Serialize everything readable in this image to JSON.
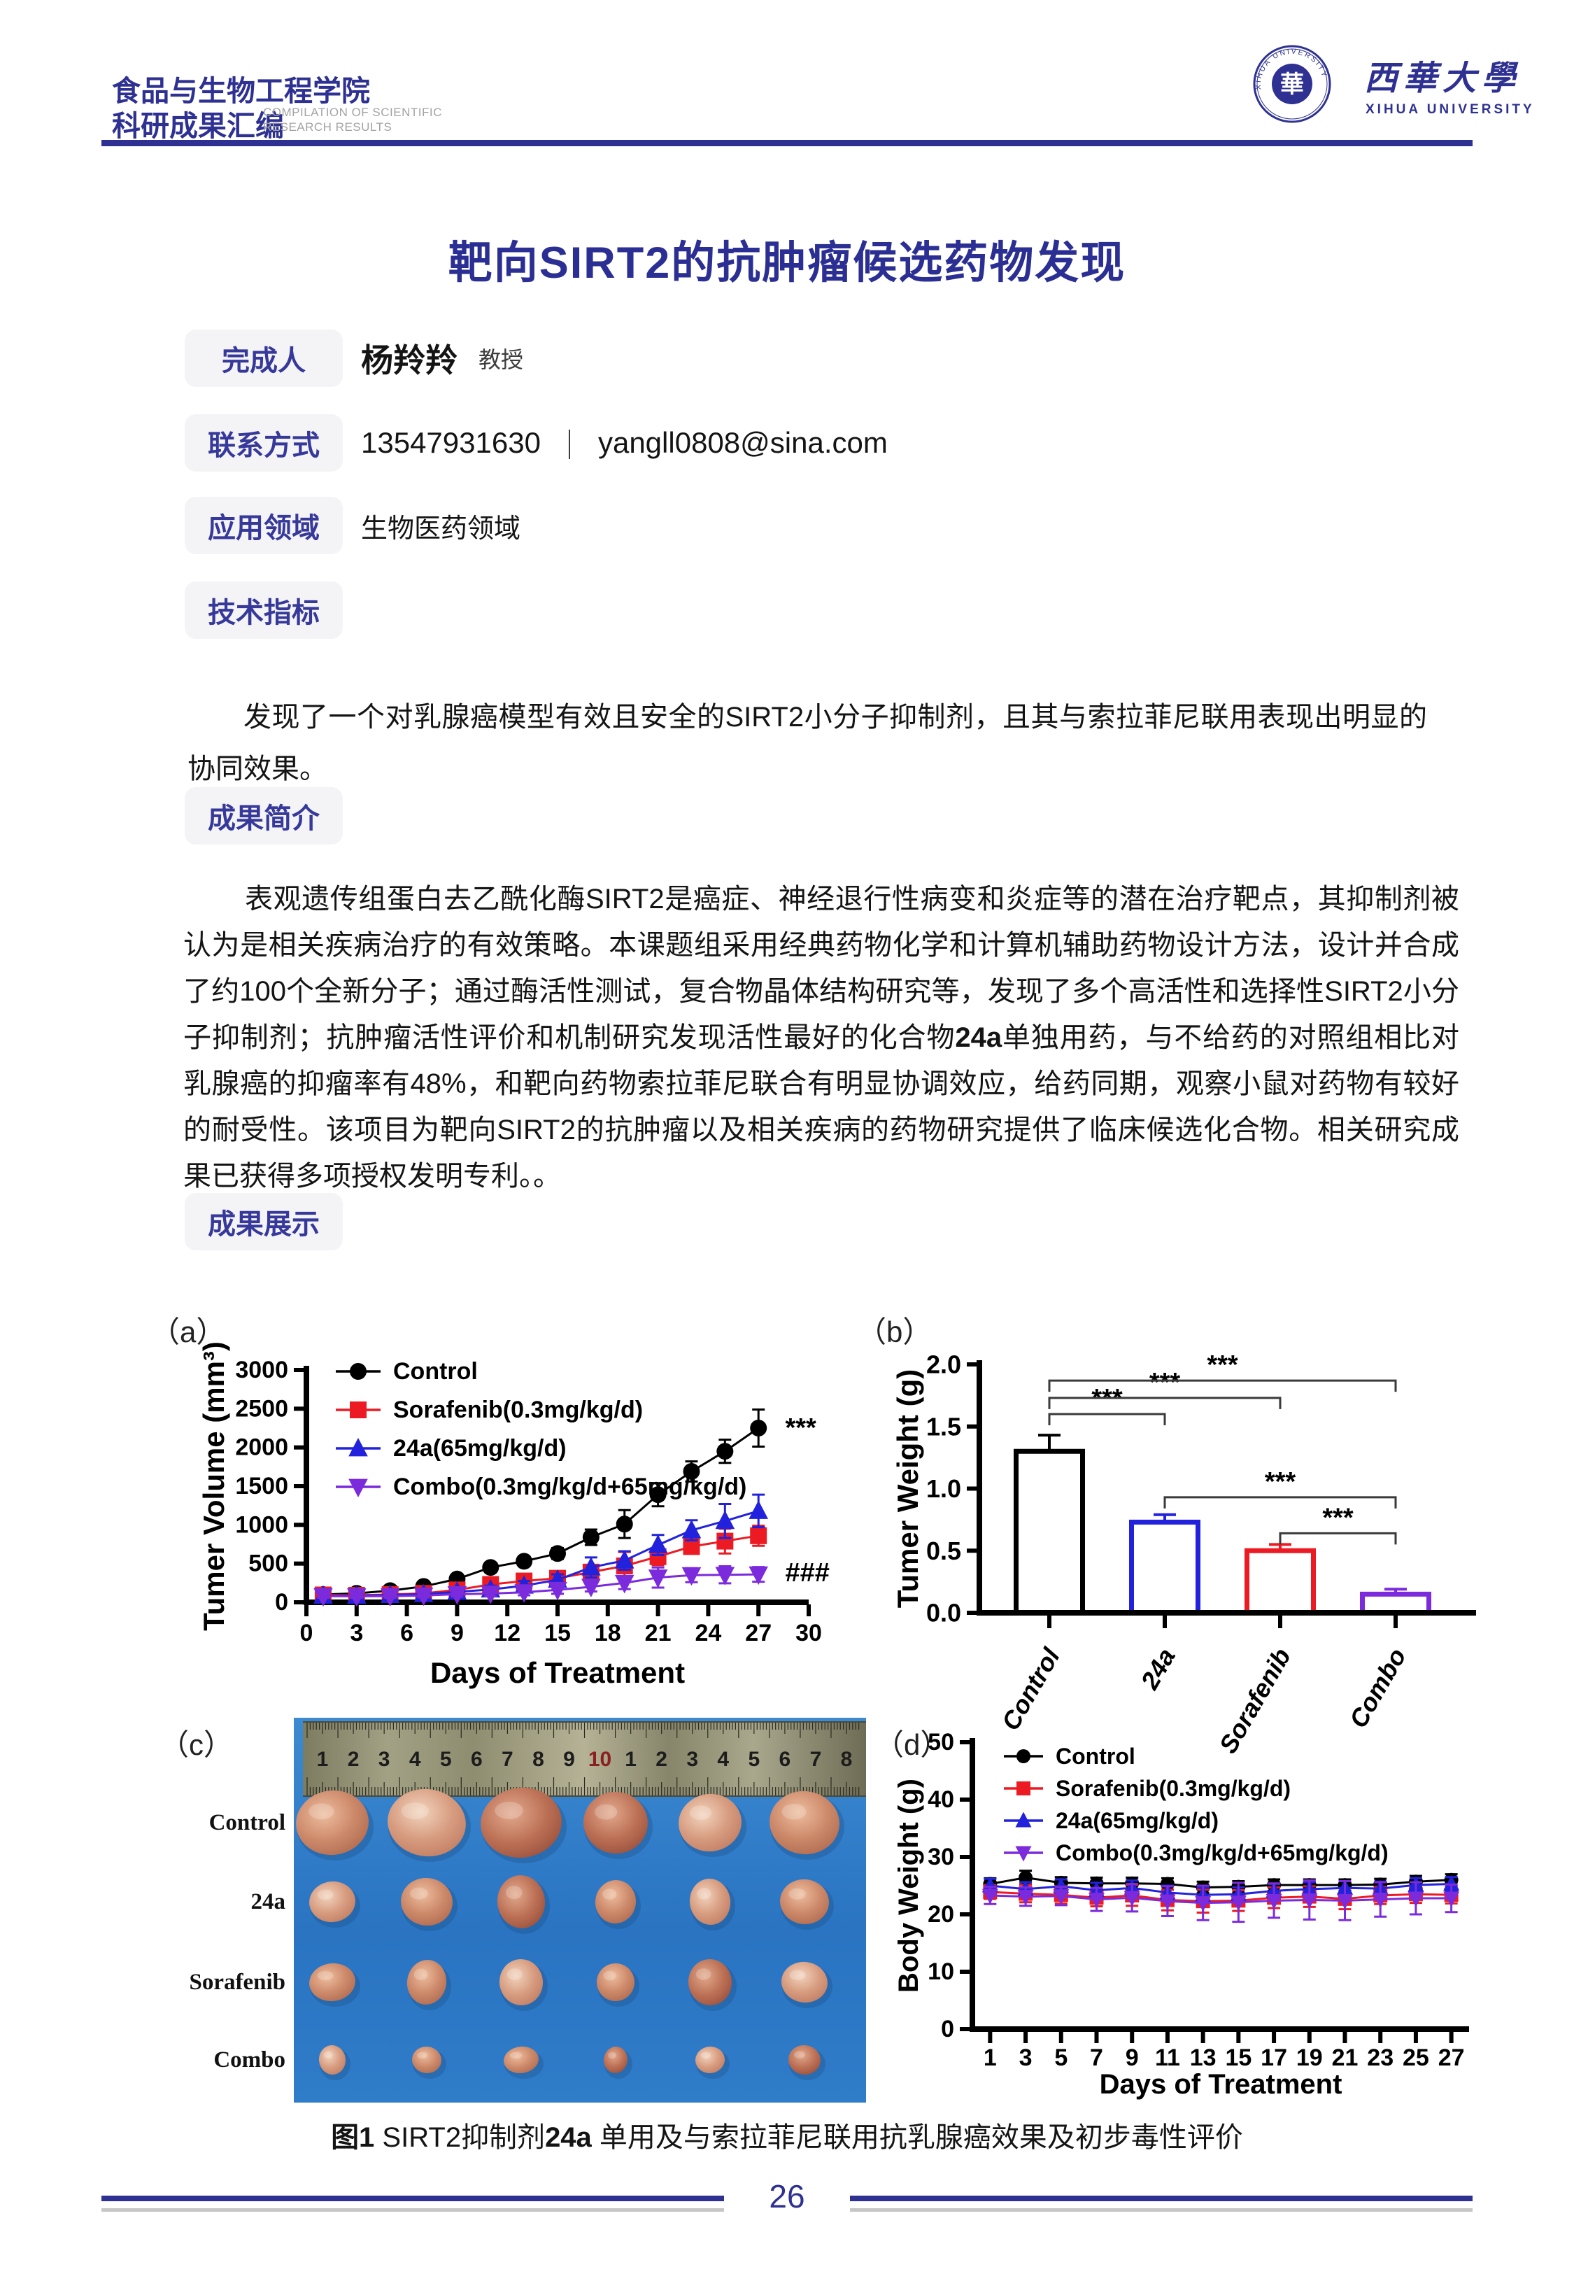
{
  "colors": {
    "accent": "#2e3192",
    "label_text": "#36399a",
    "label_bg": "#f4f4f6",
    "series_black": "#000000",
    "series_red": "#ec1b23",
    "series_blue": "#2222dd",
    "series_purple": "#7c2bdc"
  },
  "header": {
    "org_title_line1": "食品与生物工程学院",
    "org_title_line2": "科研成果汇编",
    "org_subtitle_en_line1": "COMPILATION OF SCIENTIFIC",
    "org_subtitle_en_line2": "RESEARCH RESULTS",
    "university_cn": "西華大學",
    "university_en": "XIHUA UNIVERSITY",
    "seal_glyph": "華"
  },
  "title": "靶向SIRT2的抗肿瘤候选药物发现",
  "info": {
    "rows": [
      {
        "label": "完成人",
        "name": "杨羚羚",
        "degree": "教授"
      },
      {
        "label": "联系方式",
        "phone": "13547931630",
        "separator": "｜",
        "email": "yangll0808@sina.com"
      },
      {
        "label": "应用领域",
        "value": "生物医药领域"
      },
      {
        "label": "技术指标"
      }
    ]
  },
  "tech_paragraph": "发现了一个对乳腺癌模型有效且安全的SIRT2小分子抑制剂，且其与索拉菲尼联用表现出明显的协同效果。",
  "summary": {
    "label": "成果简介",
    "part1": "表观遗传组蛋白去乙酰化酶SIRT2是癌症、神经退行性病变和炎症等的潜在治疗靶点，其抑制剂被认为是相关疾病治疗的有效策略。本课题组采用经典药物化学和计算机辅助药物设计方法，设计并合成了约100个全新分子；通过酶活性测试，复合物晶体结构研究等，发现了多个高活性和选择性SIRT2小分子抑制剂；抗肿瘤活性评价和机制研究发现活性最好的化合物",
    "highlight": "24a",
    "part2": "单独用药，与不给药的对照组相比对乳腺癌的抑瘤率有48%，和靶向药物索拉菲尼联合有明显协调效应，给药同期，观察小鼠对药物有较好的耐受性。该项目为靶向SIRT2的抗肿瘤以及相关疾病的药物研究提供了临床候选化合物。相关研究成果已获得多项授权发明专利。。"
  },
  "showcase_label": "成果展示",
  "figure": {
    "panel_labels": {
      "a": "（a）",
      "b": "（b）",
      "c": "（c）",
      "d": "（d）"
    },
    "caption": {
      "fig": "图1",
      "mid": " SIRT2抑制剂",
      "highlight": "24a",
      "rest": " 单用及与索拉菲尼联用抗乳腺癌效果及初步毒性评价"
    },
    "photo": {
      "background": "#2e7cc9",
      "ruler_numbers": [
        "1",
        "2",
        "3",
        "4",
        "5",
        "6",
        "7",
        "8",
        "9",
        "10",
        "1",
        "2",
        "3",
        "4",
        "5",
        "6",
        "7",
        "8"
      ],
      "ruler_red_index": 9,
      "rows": [
        {
          "label": "Control",
          "tumors": [
            [
              52,
              46,
              1
            ],
            [
              56,
              48,
              0
            ],
            [
              58,
              50,
              2
            ],
            [
              46,
              44,
              2
            ],
            [
              45,
              41,
              0
            ],
            [
              50,
              45,
              1
            ]
          ]
        },
        {
          "label": "24a",
          "tumors": [
            [
              33,
              29,
              0
            ],
            [
              37,
              34,
              1
            ],
            [
              34,
              38,
              2
            ],
            [
              29,
              31,
              1
            ],
            [
              29,
              33,
              0
            ],
            [
              35,
              32,
              1
            ]
          ]
        },
        {
          "label": "Sorafenib",
          "tumors": [
            [
              33,
              27,
              1
            ],
            [
              28,
              32,
              1
            ],
            [
              31,
              33,
              0
            ],
            [
              27,
              27,
              1
            ],
            [
              31,
              33,
              2
            ],
            [
              33,
              29,
              0
            ]
          ]
        },
        {
          "label": "Combo",
          "tumors": [
            [
              19,
              21,
              0
            ],
            [
              21,
              19,
              1
            ],
            [
              25,
              19,
              1
            ],
            [
              17,
              19,
              2
            ],
            [
              21,
              19,
              0
            ],
            [
              23,
              21,
              2
            ]
          ]
        }
      ]
    }
  },
  "chart_data": [
    {
      "id": "tumor-volume",
      "type": "line",
      "xlabel": "Days of Treatment",
      "ylabel": "Tumer Volume (mm³)",
      "xlim": [
        0,
        30
      ],
      "ylim": [
        0,
        3000
      ],
      "xticks": [
        0,
        3,
        6,
        9,
        12,
        15,
        18,
        21,
        24,
        27,
        30
      ],
      "yticks": [
        0,
        500,
        1000,
        1500,
        2000,
        2500,
        3000
      ],
      "x": [
        1,
        3,
        5,
        7,
        9,
        11,
        13,
        15,
        17,
        19,
        21,
        23,
        25,
        27
      ],
      "series": [
        {
          "name": "Control",
          "color": "#000000",
          "marker": "circle",
          "values": [
            100,
            115,
            150,
            205,
            300,
            450,
            530,
            630,
            840,
            1010,
            1390,
            1690,
            1950,
            2250
          ],
          "errors": [
            30,
            30,
            35,
            40,
            55,
            60,
            60,
            70,
            100,
            180,
            150,
            130,
            150,
            240
          ]
        },
        {
          "name": "Sorafenib(0.3mg/kg/d)",
          "color": "#ec1b23",
          "marker": "square",
          "values": [
            95,
            90,
            100,
            115,
            160,
            230,
            275,
            310,
            390,
            470,
            590,
            720,
            790,
            860
          ],
          "errors": [
            30,
            30,
            30,
            35,
            50,
            60,
            60,
            60,
            90,
            180,
            110,
            90,
            160,
            130
          ]
        },
        {
          "name": "24a(65mg/kg/d)",
          "color": "#2222dd",
          "marker": "triangle",
          "values": [
            85,
            85,
            95,
            105,
            135,
            165,
            215,
            290,
            450,
            540,
            740,
            930,
            1050,
            1180
          ],
          "errors": [
            25,
            25,
            25,
            30,
            40,
            50,
            60,
            70,
            130,
            120,
            130,
            130,
            220,
            210
          ]
        },
        {
          "name": "Combo(0.3mg/kg/d+65mg/kg/d)",
          "color": "#7c2bdc",
          "marker": "triangle-down",
          "values": [
            80,
            78,
            80,
            88,
            105,
            112,
            130,
            160,
            200,
            250,
            320,
            350,
            355,
            360
          ],
          "errors": [
            20,
            20,
            20,
            25,
            30,
            35,
            40,
            50,
            60,
            80,
            130,
            90,
            110,
            95
          ]
        }
      ],
      "annotations": [
        {
          "text": "***",
          "x": 28.6,
          "y": 2250,
          "color": "#000000"
        },
        {
          "text": "###",
          "x": 28.6,
          "y": 380,
          "color": "#000000"
        }
      ]
    },
    {
      "id": "tumor-weight",
      "type": "bar",
      "ylabel": "Tumer Weight (g)",
      "ylim": [
        0,
        2
      ],
      "ytick_labels": [
        "0.0",
        "0.5",
        "1.0",
        "1.5",
        "2.0"
      ],
      "categories": [
        "Control",
        "24a",
        "Sorafenib",
        "Combo"
      ],
      "values": [
        1.3,
        0.73,
        0.5,
        0.15
      ],
      "errors": [
        0.13,
        0.06,
        0.05,
        0.04
      ],
      "bar_colors": [
        "#000000",
        "#2222dd",
        "#ec1b23",
        "#7c2bdc"
      ],
      "brackets": [
        {
          "from": 0,
          "to": 1,
          "y": 1.6,
          "label": "***"
        },
        {
          "from": 0,
          "to": 2,
          "y": 1.73,
          "label": "***"
        },
        {
          "from": 0,
          "to": 3,
          "y": 1.87,
          "label": "***"
        },
        {
          "from": 1,
          "to": 3,
          "y": 0.93,
          "label": "***"
        },
        {
          "from": 2,
          "to": 3,
          "y": 0.64,
          "label": "***"
        }
      ]
    },
    {
      "id": "body-weight",
      "type": "line",
      "xlabel": "Days of Treatment",
      "ylabel": "Body Weight (g)",
      "xlim": [
        0,
        28
      ],
      "ylim": [
        0,
        50
      ],
      "xticks": [
        1,
        3,
        5,
        7,
        9,
        11,
        13,
        15,
        17,
        19,
        21,
        23,
        25,
        27
      ],
      "yticks": [
        0,
        10,
        20,
        30,
        40,
        50
      ],
      "x": [
        1,
        3,
        5,
        7,
        9,
        11,
        13,
        15,
        17,
        19,
        21,
        23,
        25,
        27
      ],
      "series": [
        {
          "name": "Control",
          "color": "#000000",
          "marker": "circle",
          "values": [
            25.3,
            26.4,
            25.5,
            25.4,
            25.4,
            25.3,
            24.7,
            24.8,
            25.1,
            25.1,
            25.1,
            25.2,
            25.7,
            26.0
          ],
          "errors": [
            1.0,
            1.2,
            1.0,
            1.0,
            1.0,
            1.0,
            1.0,
            1.0,
            1.0,
            1.0,
            1.0,
            1.0,
            1.0,
            1.0
          ]
        },
        {
          "name": "Sorafenib(0.3mg/kg/d)",
          "color": "#ec1b23",
          "marker": "square",
          "values": [
            23.9,
            23.6,
            23.4,
            22.9,
            23.3,
            22.5,
            22.3,
            22.4,
            22.9,
            23.1,
            22.7,
            23.3,
            23.5,
            23.4
          ],
          "errors": [
            1.2,
            1.5,
            1.5,
            1.5,
            1.8,
            1.8,
            2.0,
            1.8,
            1.8,
            1.8,
            1.8,
            1.5,
            1.5,
            1.5
          ]
        },
        {
          "name": "24a(65mg/kg/d)",
          "color": "#2222dd",
          "marker": "triangle",
          "values": [
            25.0,
            24.4,
            24.9,
            24.2,
            24.6,
            23.8,
            23.4,
            23.5,
            24.1,
            24.4,
            24.6,
            24.5,
            25.1,
            25.3
          ],
          "errors": [
            1.2,
            1.2,
            1.2,
            1.3,
            1.3,
            1.2,
            1.2,
            1.2,
            1.2,
            1.2,
            1.2,
            1.2,
            1.2,
            1.2
          ]
        },
        {
          "name": "Combo(0.3mg/kg/d+65mg/kg/d)",
          "color": "#7c2bdc",
          "marker": "triangle-down",
          "values": [
            23.3,
            23.1,
            23.2,
            22.6,
            22.9,
            22.3,
            22.0,
            22.1,
            22.4,
            22.5,
            22.4,
            22.6,
            22.8,
            22.8
          ],
          "errors": [
            1.5,
            1.6,
            1.6,
            2.0,
            2.4,
            2.6,
            3.0,
            3.4,
            3.0,
            3.4,
            3.4,
            3.0,
            2.8,
            2.4
          ]
        }
      ],
      "annotations": []
    }
  ],
  "footer": {
    "page_number": "26"
  }
}
